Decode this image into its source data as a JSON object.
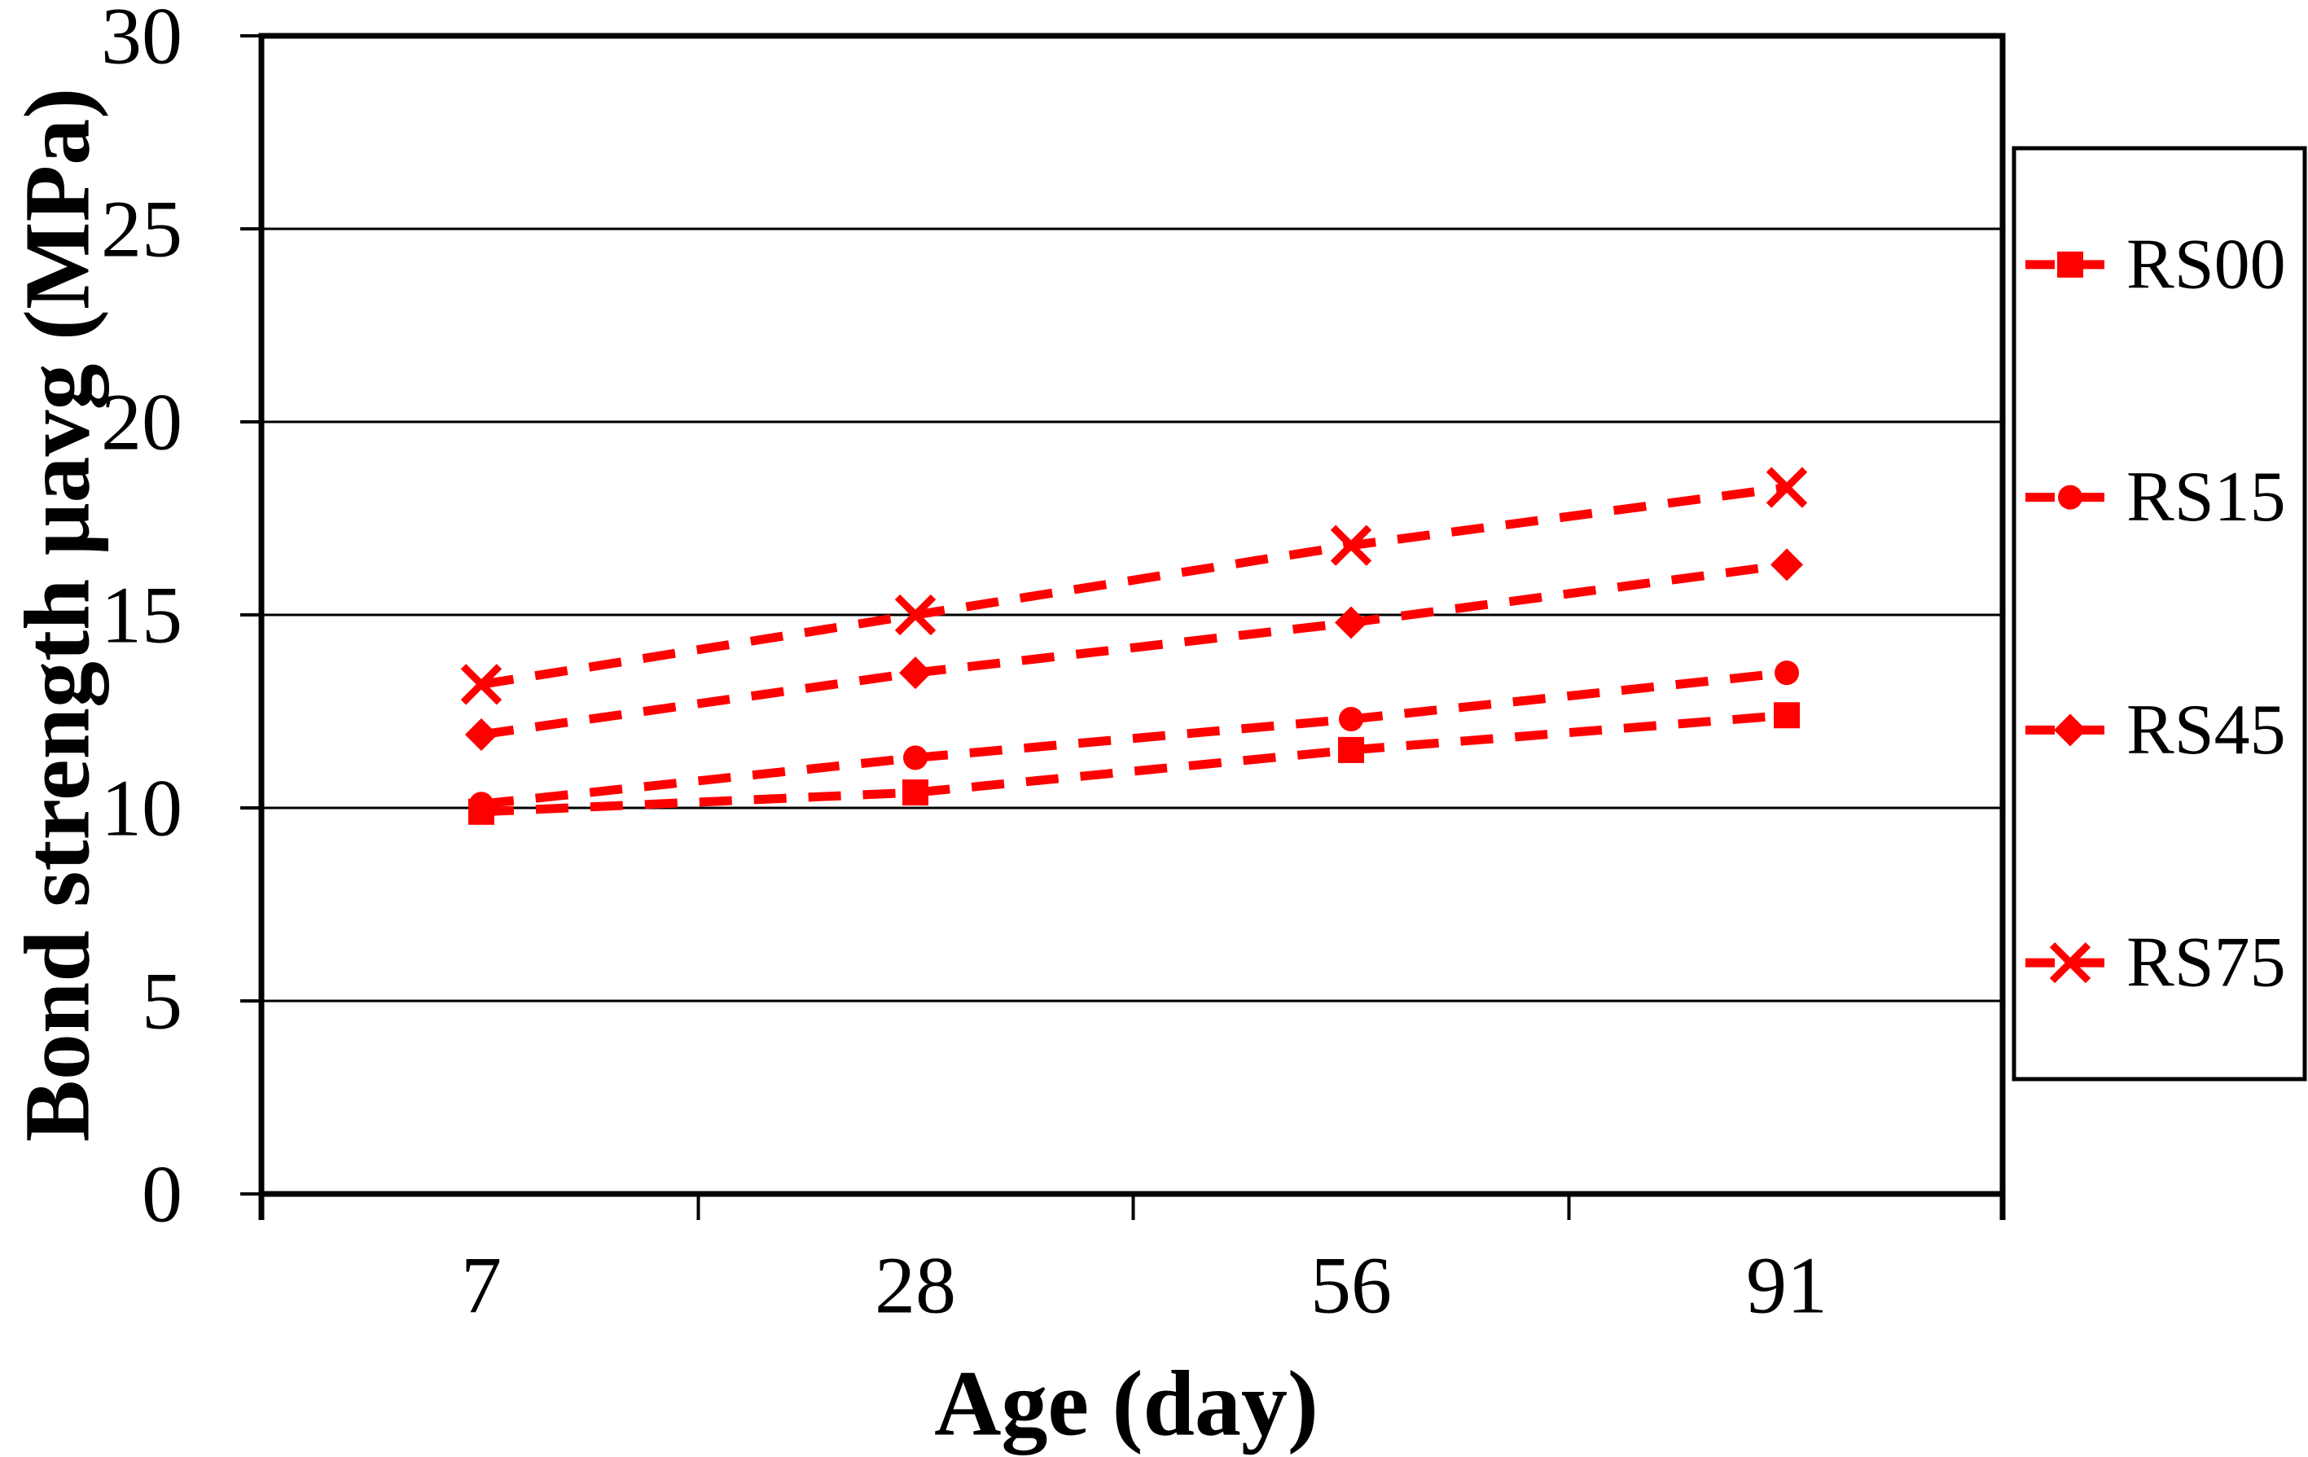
{
  "chart_data": {
    "type": "line",
    "xlabel": "Age (day)",
    "ylabel": "Bond strength μavg (MPa)",
    "categories": [
      7,
      28,
      56,
      91
    ],
    "x_tick_labels": [
      "7",
      "28",
      "56",
      "91"
    ],
    "y_ticks": [
      0,
      5,
      10,
      15,
      20,
      25,
      30
    ],
    "y_tick_labels": [
      "0",
      "5",
      "10",
      "15",
      "20",
      "25",
      "30"
    ],
    "ylim": [
      0,
      30
    ],
    "grid": "horizontal",
    "line_style": "dashed",
    "legend_position": "right",
    "series": [
      {
        "name": "RS00",
        "marker": "square",
        "values": [
          9.9,
          10.4,
          11.5,
          12.4
        ]
      },
      {
        "name": "RS15",
        "marker": "circle",
        "values": [
          10.1,
          11.3,
          12.3,
          13.5
        ]
      },
      {
        "name": "RS45",
        "marker": "diamond",
        "values": [
          11.9,
          13.5,
          14.8,
          16.3
        ]
      },
      {
        "name": "RS75",
        "marker": "x",
        "values": [
          13.2,
          15.0,
          16.8,
          18.3
        ]
      }
    ],
    "colors": {
      "series": "#FF0000",
      "axis": "#000000",
      "gridline": "#000000",
      "background": "#FFFFFF",
      "legend_background": "#FFFFFF"
    }
  }
}
